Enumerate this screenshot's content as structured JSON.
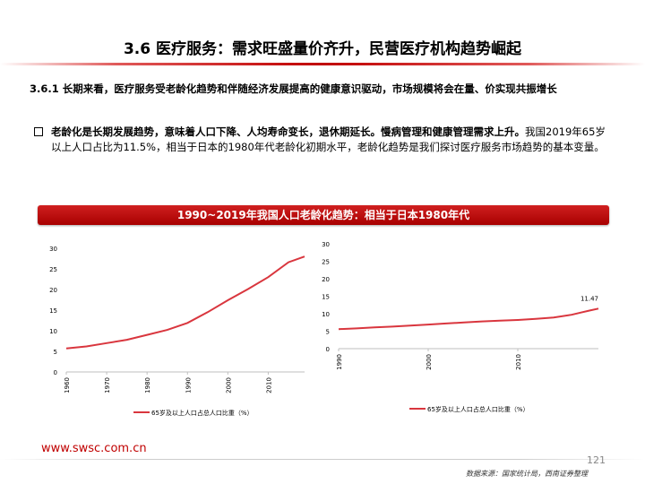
{
  "header": {
    "title": "3.6 医疗服务：需求旺盛量价齐升，民营医疗机构趋势崛起"
  },
  "subheading": "3.6.1 长期来看，医疗服务受老龄化趋势和伴随经济发展提高的健康意识驱动，市场规模将会在量、价实现共振增长",
  "bullet": {
    "bold_text": "老龄化是长期发展趋势，意味着人口下降、人均寿命变长，退休期延长。慢病管理和健康管理需求上升。",
    "normal_text": "我国2019年65岁以上人口占比为11.5%，相当于日本的1980年代老龄化初期水平，老龄化趋势是我们探讨医疗服务市场趋势的基本变量。"
  },
  "chart_banner": "1990~2019年我国人口老龄化趋势：相当于日本1980年代",
  "colors": {
    "accent": "#c00000",
    "line": "#d9363e"
  },
  "chart_data": [
    {
      "type": "line",
      "x_ticks": [
        "1960",
        "1970",
        "1980",
        "1990",
        "2000",
        "2010"
      ],
      "y_ticks": [
        "0",
        "5",
        "10",
        "15",
        "20",
        "25",
        "30"
      ],
      "ylim": [
        0,
        30
      ],
      "xlim": [
        1960,
        2019
      ],
      "series": [
        {
          "name": "65岁及以上人口占总人口比重（%）",
          "x": [
            1960,
            1965,
            1970,
            1975,
            1980,
            1985,
            1990,
            1995,
            2000,
            2005,
            2010,
            2015,
            2019
          ],
          "values": [
            5.7,
            6.2,
            7.0,
            7.8,
            9.0,
            10.2,
            11.9,
            14.5,
            17.4,
            20.1,
            23.0,
            26.6,
            28.0
          ]
        }
      ]
    },
    {
      "type": "line",
      "x_ticks": [
        "1990",
        "2000",
        "2010"
      ],
      "y_ticks": [
        "0",
        "5",
        "10",
        "15",
        "20",
        "25",
        "30"
      ],
      "ylim": [
        0,
        30
      ],
      "xlim": [
        1990,
        2019
      ],
      "series": [
        {
          "name": "65岁及以上人口占总人口比重（%）",
          "x": [
            1990,
            1992,
            1994,
            1996,
            1998,
            2000,
            2002,
            2004,
            2006,
            2008,
            2010,
            2012,
            2014,
            2016,
            2017,
            2018,
            2019
          ],
          "values": [
            5.6,
            5.8,
            6.1,
            6.3,
            6.6,
            6.9,
            7.2,
            7.5,
            7.8,
            8.0,
            8.2,
            8.5,
            8.9,
            9.7,
            10.3,
            10.9,
            11.47
          ]
        }
      ],
      "last_label": "11.47"
    }
  ],
  "footer": {
    "url": "www.swsc.com.cn",
    "page_number": "121",
    "source": "数据来源：国家统计局，西南证券整理"
  }
}
